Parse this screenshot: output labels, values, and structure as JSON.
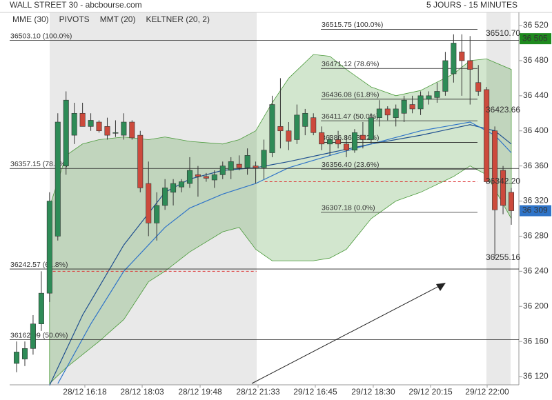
{
  "chart_data": {
    "type": "candlestick",
    "title": "WALL STREET 30 - abcbourse.com",
    "subtitle": "5 JOURS - 15 MINUTES",
    "ylim": [
      36110.6,
      36549.1
    ],
    "xlim": [
      -0.84,
      60.92
    ],
    "yticks": [
      {
        "value": 36120,
        "label": "36 120"
      },
      {
        "value": 36160,
        "label": "36 160"
      },
      {
        "value": 36200,
        "label": "36 200"
      },
      {
        "value": 36240,
        "label": "36 240"
      },
      {
        "value": 36280,
        "label": "36 280"
      },
      {
        "value": 36320,
        "label": "36 320"
      },
      {
        "value": 36360,
        "label": "36 360"
      },
      {
        "value": 36400,
        "label": "36 400"
      },
      {
        "value": 36440,
        "label": "36 440"
      },
      {
        "value": 36480,
        "label": "36 480"
      },
      {
        "value": 36520,
        "label": "36 520"
      }
    ],
    "xticks": [
      {
        "value": 8.28,
        "label": "28/12 16:18"
      },
      {
        "value": 15.23,
        "label": "28/12 18:03"
      },
      {
        "value": 22.26,
        "label": "28/12 19:48"
      },
      {
        "value": 29.29,
        "label": "28/12 21:33"
      },
      {
        "value": 36.23,
        "label": "29/12 16:45"
      },
      {
        "value": 43.26,
        "label": "29/12 18:30"
      },
      {
        "value": 50.21,
        "label": "29/12 20:15"
      },
      {
        "value": 57.07,
        "label": "29/12 22:00"
      }
    ],
    "up_color": "#2e8b57",
    "down_color": "#cc4a3c",
    "open": [
      36135,
      36140,
      36152,
      36180,
      36215,
      36280,
      36360,
      36395,
      36420,
      36405,
      36410,
      36405,
      36398,
      36395,
      36410,
      36395,
      36340,
      36295,
      36315,
      36330,
      36336,
      36340,
      36350,
      36348,
      36344,
      36350,
      36355,
      36362,
      36358,
      36360,
      36358,
      36375,
      36405,
      36400,
      36390,
      36405,
      36415,
      36398,
      36385,
      36390,
      36385,
      36378,
      36395,
      36390,
      36415,
      36425,
      36415,
      36420,
      36430,
      36425,
      36436,
      36438,
      36445,
      36465,
      36490,
      36480,
      36455,
      36447,
      36400,
      36355,
      36330
    ],
    "high": [
      36160,
      36160,
      36190,
      36240,
      36330,
      36420,
      36445,
      36432,
      36432,
      36420,
      36412,
      36415,
      36412,
      36420,
      36412,
      36400,
      36365,
      36330,
      36345,
      36345,
      36345,
      36370,
      36360,
      36352,
      36355,
      36365,
      36370,
      36372,
      36380,
      36365,
      36390,
      36440,
      36460,
      36410,
      36430,
      36425,
      36420,
      36405,
      36395,
      36400,
      36395,
      36402,
      36410,
      36420,
      36435,
      36428,
      36430,
      36440,
      36440,
      36445,
      36445,
      36455,
      36490,
      36510,
      36510,
      36508,
      36475,
      36450,
      36405,
      36360,
      36335
    ],
    "low": [
      36125,
      36132,
      36145,
      36172,
      36205,
      36275,
      36350,
      36385,
      36405,
      36400,
      36398,
      36390,
      36393,
      36390,
      36390,
      36330,
      36280,
      36275,
      36310,
      36315,
      36330,
      36335,
      36325,
      36342,
      36335,
      36345,
      36345,
      36355,
      36350,
      36340,
      36345,
      36370,
      36380,
      36378,
      36385,
      36395,
      36395,
      36378,
      36372,
      36380,
      36370,
      36375,
      36380,
      36385,
      36405,
      36412,
      36405,
      36410,
      36420,
      36418,
      36430,
      36432,
      36440,
      36455,
      36440,
      36430,
      36440,
      36340,
      36255,
      36305,
      36293
    ],
    "close": [
      36148,
      36152,
      36180,
      36215,
      36320,
      36410,
      36435,
      36420,
      36405,
      36412,
      36400,
      36395,
      36398,
      36410,
      36392,
      36335,
      36295,
      36315,
      36335,
      36340,
      36342,
      36355,
      36348,
      36346,
      36350,
      36360,
      36365,
      36358,
      36372,
      36358,
      36378,
      36430,
      36400,
      36388,
      36418,
      36420,
      36398,
      36385,
      36390,
      36385,
      36378,
      36398,
      36390,
      36415,
      36425,
      36418,
      36425,
      36435,
      36425,
      36440,
      36440,
      36445,
      36480,
      36500,
      36480,
      36470,
      36445,
      36342,
      36310,
      36315,
      36309
    ],
    "keltner": {
      "name": "KELTNER (20, 2)",
      "color": "#4a9a3a",
      "x": [
        4,
        6,
        8,
        10,
        13,
        16,
        18,
        21,
        25,
        27,
        29,
        31,
        33,
        36,
        38,
        40,
        43,
        46,
        49,
        53,
        55,
        57,
        60
      ],
      "upper": [
        36313,
        36372,
        36385,
        36390,
        36393,
        36390,
        36393,
        36388,
        36385,
        36390,
        36400,
        36432,
        36460,
        36487,
        36485,
        36470,
        36450,
        36440,
        36446,
        36465,
        36480,
        36482,
        36470
      ],
      "lower": [
        36112,
        36130,
        36145,
        36160,
        36185,
        36228,
        36240,
        36262,
        36285,
        36290,
        36265,
        36252,
        36252,
        36252,
        36255,
        36265,
        36300,
        36320,
        36330,
        36348,
        36360,
        36350,
        36300
      ]
    },
    "series": [
      {
        "name": "MME (30)",
        "color": "#1f4f8f",
        "x": [
          4,
          8,
          13,
          18,
          21,
          25,
          29,
          33,
          38,
          43,
          49,
          55,
          58,
          60
        ],
        "values": [
          36110,
          36190,
          36270,
          36330,
          36345,
          36355,
          36358,
          36365,
          36375,
          36385,
          36395,
          36407,
          36400,
          36385
        ]
      },
      {
        "name": "MMT (20)",
        "color": "#2f74c8",
        "x": [
          5,
          9,
          13,
          18,
          21,
          25,
          29,
          33,
          38,
          43,
          49,
          55,
          58,
          60
        ],
        "values": [
          36112,
          36180,
          36240,
          36290,
          36312,
          36328,
          36340,
          36358,
          36372,
          36385,
          36400,
          36410,
          36395,
          36375
        ]
      }
    ],
    "pivots": {
      "name": "PIVOTS",
      "color": "#555555",
      "left": [
        {
          "value": 36503.1,
          "label": "36503.10  (100.0%)"
        },
        {
          "value": 36357.15,
          "label": "36357.15  (78.6%)"
        },
        {
          "value": 36242.57,
          "label": "36242.57  (61.8%)"
        },
        {
          "value": 36162.09,
          "label": "36162.09  (50.0%)"
        }
      ],
      "right": [
        {
          "value": 36515.75,
          "label": "36515.75  (100.0%)"
        },
        {
          "value": 36471.12,
          "label": "36471.12  (78.6%)"
        },
        {
          "value": 36436.08,
          "label": "36436.08  (61.8%)"
        },
        {
          "value": 36411.47,
          "label": "36411.47  (50.0%)"
        },
        {
          "value": 36386.86,
          "label": "36386.86  (38.2%)"
        },
        {
          "value": 36356.4,
          "label": "36356.40  (23.6%)"
        },
        {
          "value": 36307.18,
          "label": "36307.18  (0.0%)"
        }
      ]
    },
    "dashed_levels": [
      {
        "value": 36240,
        "x": [
          4.4,
          29.1
        ],
        "color": "#d33"
      },
      {
        "value": 36342,
        "x": [
          30.1,
          55.9
        ],
        "color": "#d33"
      }
    ],
    "price_tags": [
      {
        "value": 36510.7,
        "label": "36510.70",
        "color": "#2e8b2e",
        "boxed": false
      },
      {
        "value": 36505,
        "label": "36 505",
        "color": "#1e8a1e",
        "boxed": true
      },
      {
        "value": 36423.66,
        "label": "36423.66",
        "color": "#1f4f8f",
        "boxed": false
      },
      {
        "value": 36342.2,
        "label": "36342.20",
        "color": "#d33",
        "boxed": false
      },
      {
        "value": 36309,
        "label": "36 309",
        "color": "#2f74c8",
        "boxed": true
      },
      {
        "value": 36255.16,
        "label": "36255.16",
        "color": "#d33",
        "boxed": false
      }
    ]
  }
}
